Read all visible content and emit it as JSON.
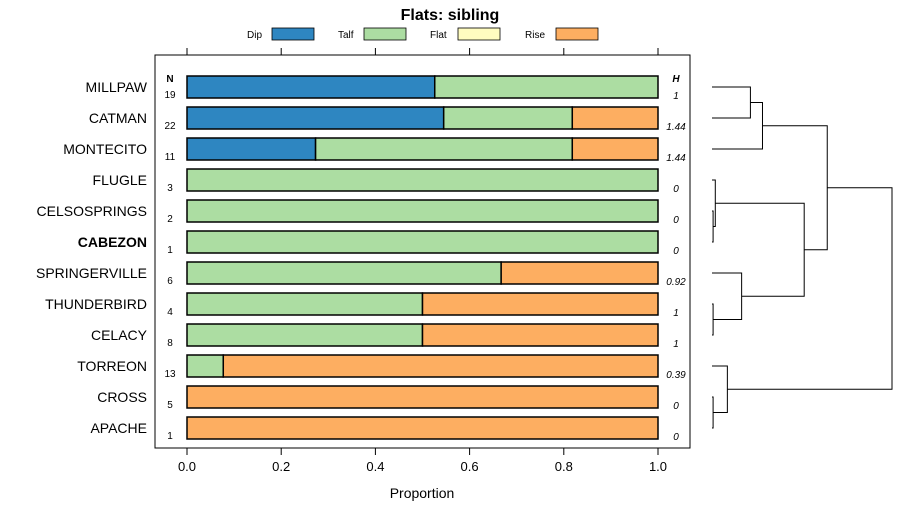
{
  "chart_data": {
    "type": "bar",
    "stacked": true,
    "orientation": "horizontal",
    "title": "Flats: sibling",
    "xlabel": "Proportion",
    "ylabel": "",
    "xlim": [
      0,
      1
    ],
    "xticks": [
      {
        "value": 0,
        "label": "0.0"
      },
      {
        "value": 0.2,
        "label": "0.2"
      },
      {
        "value": 0.4,
        "label": "0.4"
      },
      {
        "value": 0.6,
        "label": "0.6"
      },
      {
        "value": 0.8,
        "label": "0.8"
      },
      {
        "value": 1,
        "label": "1.0"
      }
    ],
    "legend": [
      {
        "name": "Dip",
        "color": "#2e86c1"
      },
      {
        "name": "Talf",
        "color": "#acdda2"
      },
      {
        "name": "Flat",
        "color": "#fffcc0"
      },
      {
        "name": "Rise",
        "color": "#fdae61"
      }
    ],
    "n_header": "N",
    "h_header": "H",
    "categories": [
      {
        "name": "MILLPAW",
        "n": "19",
        "h": "1",
        "bold": false
      },
      {
        "name": "CATMAN",
        "n": "22",
        "h": "1.44",
        "bold": false
      },
      {
        "name": "MONTECITO",
        "n": "11",
        "h": "1.44",
        "bold": false
      },
      {
        "name": "FLUGLE",
        "n": "3",
        "h": "0",
        "bold": false
      },
      {
        "name": "CELSOSPRINGS",
        "n": "2",
        "h": "0",
        "bold": false
      },
      {
        "name": "CABEZON",
        "n": "1",
        "h": "0",
        "bold": true
      },
      {
        "name": "SPRINGERVILLE",
        "n": "6",
        "h": "0.92",
        "bold": false
      },
      {
        "name": "THUNDERBIRD",
        "n": "4",
        "h": "1",
        "bold": false
      },
      {
        "name": "CELACY",
        "n": "8",
        "h": "1",
        "bold": false
      },
      {
        "name": "TORREON",
        "n": "13",
        "h": "0.39",
        "bold": false
      },
      {
        "name": "CROSS",
        "n": "5",
        "h": "0",
        "bold": false
      },
      {
        "name": "APACHE",
        "n": "1",
        "h": "0",
        "bold": false
      }
    ],
    "series": [
      {
        "name": "Dip",
        "values": [
          0.526,
          0.545,
          0.273,
          0,
          0,
          0,
          0,
          0,
          0,
          0,
          0,
          0
        ]
      },
      {
        "name": "Talf",
        "values": [
          0.474,
          0.273,
          0.545,
          1,
          1,
          1,
          0.667,
          0.5,
          0.5,
          0.077,
          0,
          0
        ]
      },
      {
        "name": "Flat",
        "values": [
          0,
          0,
          0,
          0,
          0,
          0,
          0,
          0,
          0,
          0,
          0,
          0
        ]
      },
      {
        "name": "Rise",
        "values": [
          0,
          0.182,
          0.182,
          0,
          0,
          0,
          0.333,
          0.5,
          0.5,
          0.923,
          1,
          1
        ]
      }
    ],
    "dendrogram": {
      "leaves": [
        "MILLPAW",
        "CATMAN",
        "MONTECITO",
        "FLUGLE",
        "CELSOSPRINGS",
        "CABEZON",
        "SPRINGERVILLE",
        "THUNDERBIRD",
        "CELACY",
        "TORREON",
        "CROSS",
        "APACHE"
      ],
      "merges": [
        {
          "left": "MILLPAW",
          "right": "CATMAN",
          "height": 0.35
        },
        {
          "left": "c0",
          "right": "MONTECITO",
          "height": 0.46
        },
        {
          "left": "CELSOSPRINGS",
          "right": "CABEZON",
          "height": 0.01
        },
        {
          "left": "FLUGLE",
          "right": "c2",
          "height": 0.03
        },
        {
          "left": "THUNDERBIRD",
          "right": "CELACY",
          "height": 0.01
        },
        {
          "left": "SPRINGERVILLE",
          "right": "c4",
          "height": 0.27
        },
        {
          "left": "c3",
          "right": "c5",
          "height": 0.84
        },
        {
          "left": "c1",
          "right": "c6",
          "height": 1.05
        },
        {
          "left": "CROSS",
          "right": "APACHE",
          "height": 0.01
        },
        {
          "left": "TORREON",
          "right": "c8",
          "height": 0.14
        },
        {
          "left": "c7",
          "right": "c9",
          "height": 1.64
        }
      ]
    }
  }
}
